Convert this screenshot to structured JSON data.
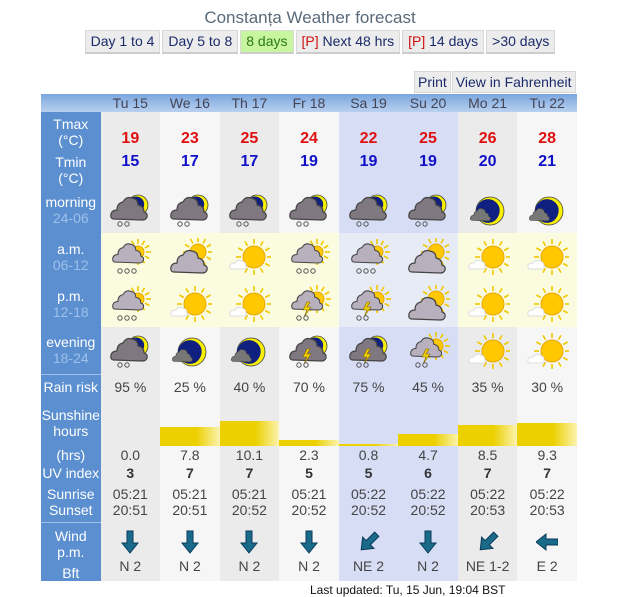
{
  "title": "Constanța Weather forecast",
  "tabs": [
    {
      "label": "Day 1 to 4"
    },
    {
      "label": "Day 5 to 8"
    },
    {
      "label": "8 days",
      "active": true
    },
    {
      "prefix": "[P]",
      "label": " Next 48 hrs"
    },
    {
      "prefix": "[P]",
      "label": " 14 days"
    },
    {
      "label": ">30 days"
    }
  ],
  "tools": {
    "print": "Print",
    "fahrenheit": "View in Fahrenheit"
  },
  "labels": {
    "tmax": "Tmax (°C)",
    "tmin": "Tmin (°C)",
    "morning": "morning",
    "morning_sub": "24-06",
    "am": "a.m.",
    "am_sub": "06-12",
    "pm": "p.m.",
    "pm_sub": "12-18",
    "evening": "evening",
    "evening_sub": "18-24",
    "rain": "Rain risk",
    "sunshine": "Sunshine hours",
    "hrs": "(hrs)",
    "uv": "UV index",
    "sunrise": "Sunrise",
    "sunset": "Sunset",
    "wind": "Wind p.m.",
    "bft": "Bft"
  },
  "days": [
    {
      "day": "Tu 15",
      "tmax": "19",
      "tmin": "15",
      "morning": "night-cloud-rain-moon",
      "am": "cloud-rain-sun",
      "pm": "cloud-rain-sun",
      "evening": "night-cloud-rain-moon",
      "rain": "95 %",
      "sun_hours": "0.0",
      "uv": "3",
      "sunrise": "05:21",
      "sunset": "20:51",
      "wind_dir": "N",
      "wind": "N 2"
    },
    {
      "day": "We 16",
      "tmax": "23",
      "tmin": "17",
      "morning": "night-cloud-rain-moon",
      "am": "cloud-sun",
      "pm": "sun-cloud",
      "evening": "moon-cloud",
      "rain": "25 %",
      "sun_hours": "7.8",
      "uv": "7",
      "sunrise": "05:21",
      "sunset": "20:51",
      "wind_dir": "N",
      "wind": "N 2"
    },
    {
      "day": "Th 17",
      "tmax": "25",
      "tmin": "17",
      "morning": "night-cloud-rain-moon",
      "am": "sun-cloud",
      "pm": "sun-cloud",
      "evening": "moon-cloud",
      "rain": "40 %",
      "sun_hours": "10.1",
      "uv": "7",
      "sunrise": "05:21",
      "sunset": "20:52",
      "wind_dir": "N",
      "wind": "N 2"
    },
    {
      "day": "Fr 18",
      "tmax": "24",
      "tmin": "19",
      "morning": "night-cloud-rain-moon",
      "am": "cloud-rain-sun",
      "pm": "cloud-thunder-sun",
      "evening": "night-cloud-thunder-moon",
      "rain": "70 %",
      "sun_hours": "2.3",
      "uv": "5",
      "sunrise": "05:21",
      "sunset": "20:52",
      "wind_dir": "N",
      "wind": "N 2"
    },
    {
      "day": "Sa 19",
      "tmax": "22",
      "tmin": "19",
      "morning": "night-cloud-rain-moon",
      "am": "cloud-rain-sun",
      "pm": "cloud-thunder-sun",
      "evening": "night-cloud-thunder-moon",
      "rain": "75 %",
      "sun_hours": "0.8",
      "uv": "5",
      "sunrise": "05:22",
      "sunset": "20:52",
      "wind_dir": "NE",
      "wind": "NE 2"
    },
    {
      "day": "Su 20",
      "tmax": "25",
      "tmin": "19",
      "morning": "night-cloud-rain-moon",
      "am": "cloud-sun",
      "pm": "cloud-sun",
      "evening": "cloud-thunder-sun",
      "rain": "45 %",
      "sun_hours": "4.7",
      "uv": "6",
      "sunrise": "05:22",
      "sunset": "20:52",
      "wind_dir": "N",
      "wind": "N 2"
    },
    {
      "day": "Mo 21",
      "tmax": "26",
      "tmin": "20",
      "morning": "moon-cloud",
      "am": "sun-cloud",
      "pm": "sun-cloud",
      "evening": "sun-cloud",
      "rain": "35 %",
      "sun_hours": "8.5",
      "uv": "7",
      "sunrise": "05:22",
      "sunset": "20:53",
      "wind_dir": "NE",
      "wind": "NE 1-2"
    },
    {
      "day": "Tu 22",
      "tmax": "28",
      "tmin": "21",
      "morning": "moon-cloud",
      "am": "sun-cloud",
      "pm": "sun-cloud",
      "evening": "sun-cloud",
      "rain": "30 %",
      "sun_hours": "9.3",
      "uv": "7",
      "sunrise": "05:22",
      "sunset": "20:53",
      "wind_dir": "E",
      "wind": "E 2"
    }
  ],
  "updated": "Last updated: Tu, 15 Jun, 19:04 BST",
  "colors": {
    "label_bg": "#5b8fd0",
    "tmax": "#e01010",
    "tmin": "#1010c8",
    "sun_bar": "#ecd000",
    "active_tab": "#c8f6a0"
  }
}
